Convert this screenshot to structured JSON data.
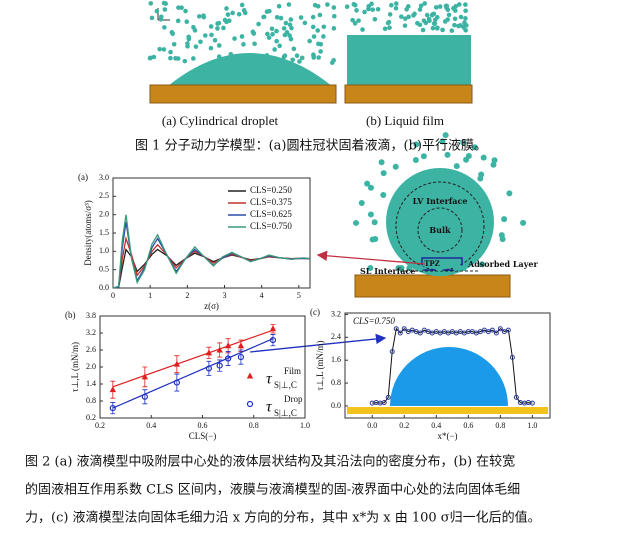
{
  "figure1": {
    "panel_labels": [
      "(a) Cylindrical droplet",
      "(b) Liquid film"
    ],
    "caption": "图 1 分子动力学模型：(a)圆柱冠状固着液滴，(b)平行液膜。"
  },
  "diagram": {
    "lv_interface": "LV Interface",
    "bulk": "Bulk",
    "tpz": "TPZ",
    "adsorbed_layer": "Adsorbed Layer",
    "sl_interface": "SL Interface"
  },
  "chart_data": [
    {
      "type": "line",
      "panel": "(a)",
      "xlabel": "z(σ)",
      "ylabel": "Density(atoms/σ³)",
      "x": [
        0,
        0.15,
        0.25,
        0.35,
        0.5,
        0.65,
        0.85,
        1.05,
        1.2,
        1.45,
        1.7,
        1.95,
        2.2,
        2.45,
        2.7,
        2.95,
        3.2,
        3.45,
        3.7,
        3.95,
        4.2,
        4.5,
        4.8,
        5.1,
        5.3
      ],
      "series": [
        {
          "name": "CLS=0.250",
          "color": "#222222",
          "values": [
            0,
            0.01,
            0.55,
            1.05,
            0.85,
            0.45,
            0.65,
            0.92,
            1.05,
            0.88,
            0.62,
            0.8,
            0.95,
            0.85,
            0.72,
            0.82,
            0.9,
            0.84,
            0.77,
            0.8,
            0.85,
            0.82,
            0.8,
            0.81,
            0.8
          ]
        },
        {
          "name": "CLS=0.375",
          "color": "#c0302a",
          "values": [
            0,
            0.02,
            0.8,
            1.35,
            0.9,
            0.35,
            0.6,
            1.0,
            1.18,
            0.9,
            0.55,
            0.8,
            1.0,
            0.86,
            0.68,
            0.82,
            0.92,
            0.84,
            0.75,
            0.8,
            0.86,
            0.82,
            0.8,
            0.81,
            0.8
          ]
        },
        {
          "name": "CLS=0.625",
          "color": "#2a4ca8",
          "values": [
            0,
            0.03,
            1.1,
            1.8,
            0.8,
            0.2,
            0.55,
            1.1,
            1.35,
            0.9,
            0.45,
            0.8,
            1.05,
            0.85,
            0.62,
            0.82,
            0.95,
            0.85,
            0.72,
            0.8,
            0.88,
            0.82,
            0.79,
            0.81,
            0.8
          ]
        },
        {
          "name": "CLS=0.750",
          "color": "#3a9a7a",
          "values": [
            0,
            0.05,
            1.3,
            2.0,
            0.8,
            0.15,
            0.5,
            1.2,
            1.45,
            0.9,
            0.4,
            0.8,
            1.12,
            0.85,
            0.6,
            0.85,
            0.97,
            0.85,
            0.72,
            0.8,
            0.9,
            0.82,
            0.78,
            0.82,
            0.8
          ]
        }
      ],
      "xlim": [
        0,
        5.3
      ],
      "ylim": [
        0,
        3.0
      ],
      "xticks": [
        0,
        1,
        2,
        3,
        4,
        5
      ],
      "yticks": [
        {
          "value": 0,
          "label": "0.0"
        },
        0.5,
        {
          "value": 1,
          "label": "1.0"
        },
        1.5,
        {
          "value": 2,
          "label": "2.0"
        },
        2.5,
        {
          "value": 3,
          "label": "3.0"
        }
      ]
    },
    {
      "type": "scatter",
      "panel": "(b)",
      "xlabel": "CLS(−)",
      "ylabel": "τ⊥,L (mN/m)",
      "legend_symbol": "τ",
      "legend_sub": "S|⊥,C",
      "x": [
        0.25,
        0.375,
        0.5,
        0.625,
        0.667,
        0.7,
        0.75,
        0.875
      ],
      "series": [
        {
          "name": "Film",
          "color": "#e02020",
          "marker": "triangle",
          "values": [
            1.2,
            1.65,
            2.1,
            2.5,
            2.6,
            2.75,
            2.75,
            3.35
          ],
          "errors": [
            0.3,
            0.35,
            0.3,
            0.2,
            0.25,
            0.25,
            0.2,
            0.15
          ],
          "fit": {
            "x": [
              0.25,
              0.875
            ],
            "values": [
              1.3,
              3.3
            ]
          }
        },
        {
          "name": "Drop",
          "color": "#2030c0",
          "marker": "circle",
          "values": [
            0.55,
            0.95,
            1.45,
            1.95,
            2.05,
            2.3,
            2.35,
            2.95
          ],
          "errors": [
            0.2,
            0.25,
            0.3,
            0.25,
            0.2,
            0.25,
            0.25,
            0.2
          ],
          "fit": {
            "x": [
              0.25,
              0.875
            ],
            "values": [
              0.55,
              3.0
            ]
          }
        }
      ],
      "xlim": [
        0.2,
        1.0
      ],
      "ylim": [
        0.2,
        3.8
      ],
      "xticks": [
        0.2,
        0.4,
        0.6,
        0.8,
        {
          "value": 1,
          "label": "1.0"
        }
      ],
      "yticks": [
        0.2,
        0.8,
        1.4,
        {
          "value": 2,
          "label": "2.0"
        },
        2.6,
        3.2,
        3.8
      ]
    },
    {
      "type": "line",
      "panel": "(c)",
      "xlabel": "x*(−)",
      "ylabel": "τ⊥,L (mN/m)",
      "annotation": "CLS=0.750",
      "markers": true,
      "x": [
        0,
        0.025,
        0.05,
        0.075,
        0.1,
        0.125,
        0.15,
        0.175,
        0.2,
        0.225,
        0.25,
        0.275,
        0.3,
        0.325,
        0.35,
        0.375,
        0.4,
        0.425,
        0.45,
        0.475,
        0.5,
        0.525,
        0.55,
        0.575,
        0.6,
        0.625,
        0.65,
        0.675,
        0.7,
        0.725,
        0.75,
        0.775,
        0.8,
        0.825,
        0.85,
        0.875,
        0.9,
        0.925,
        0.95,
        0.975,
        1.0
      ],
      "series": [
        {
          "color": "#2a3a9a",
          "values": [
            0.1,
            0.12,
            0.1,
            0.12,
            0.3,
            1.9,
            2.7,
            2.55,
            2.7,
            2.6,
            2.65,
            2.6,
            2.55,
            2.65,
            2.6,
            2.55,
            2.6,
            2.55,
            2.6,
            2.55,
            2.6,
            2.55,
            2.6,
            2.55,
            2.6,
            2.6,
            2.55,
            2.6,
            2.65,
            2.6,
            2.65,
            2.55,
            2.7,
            2.6,
            2.65,
            1.7,
            0.3,
            0.12,
            0.1,
            0.12,
            0.1
          ]
        }
      ],
      "xlim": [
        -0.17,
        1.11
      ],
      "ylim": [
        -0.42,
        3.25
      ],
      "xticks": [
        {
          "value": 0,
          "label": "0.0"
        },
        0.2,
        0.4,
        0.6,
        0.8,
        {
          "value": 1,
          "label": "1.0"
        }
      ],
      "yticks": [
        {
          "value": 0,
          "label": "0.0"
        },
        0.8,
        1.6,
        2.4,
        3.2
      ]
    }
  ],
  "figure2": {
    "caption_lines": [
      "图 2 (a) 液滴模型中吸附层中心处的液体层状结构及其沿法向的密度分布，(b) 在较宽",
      "的固液相互作用系数 CLS 区间内，液膜与液滴模型的固-液界面中心处的法向固体毛细",
      "力，(c) 液滴模型法向固体毛细力沿 x 方向的分布，其中 x*为 x 由 100 σ归一化后的值。"
    ]
  }
}
